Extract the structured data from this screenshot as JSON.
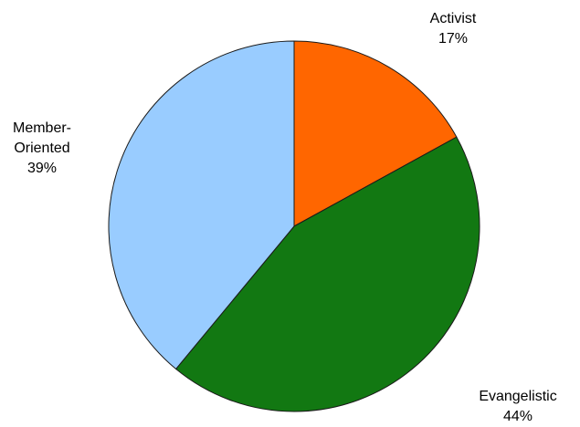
{
  "chart_data": {
    "type": "pie",
    "slices": [
      {
        "label": "Activist",
        "value": 17,
        "value_label": "17%",
        "color": "#ff6600"
      },
      {
        "label": "Evangelistic",
        "value": 44,
        "value_label": "44%",
        "color": "#127812"
      },
      {
        "label": "Member-Oriented",
        "label_lines": [
          "Member-",
          "Oriented"
        ],
        "value": 39,
        "value_label": "39%",
        "color": "#99ccff"
      }
    ],
    "start_angle_deg": 0,
    "direction": "clockwise",
    "title": "",
    "legend": "none"
  }
}
